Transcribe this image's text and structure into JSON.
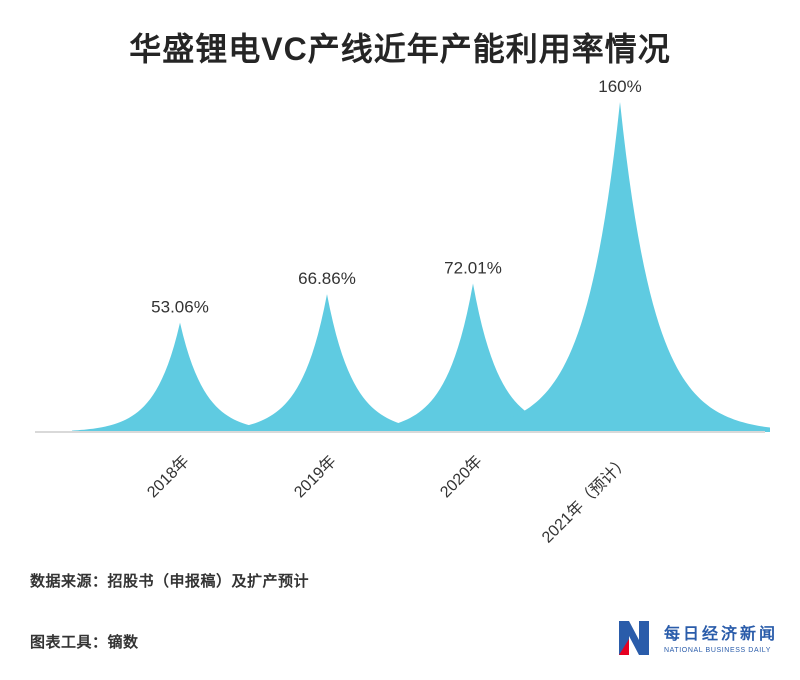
{
  "chart_data": {
    "type": "area",
    "title": "华盛锂电VC产线近年产能利用率情况",
    "categories": [
      "2018年",
      "2019年",
      "2020年",
      "2021年（预计）"
    ],
    "values": [
      53.06,
      66.86,
      72.01,
      160
    ],
    "value_labels": [
      "53.06%",
      "66.86%",
      "72.01%",
      "160%"
    ],
    "unit": "%",
    "xlabel": "",
    "ylabel": "",
    "ylim": [
      0,
      170
    ],
    "grid": false,
    "legend": null,
    "series_color": "#5FCBE1",
    "axis_color": "#D9D9D9",
    "label_color": "#333333"
  },
  "footer": {
    "source": "数据来源：招股书（申报稿）及扩产预计",
    "tool": "图表工具：镝数"
  },
  "logo": {
    "name_cn": "每日经济新闻",
    "name_en": "NATIONAL BUSINESS DAILY",
    "brand_blue": "#2A5CAA",
    "brand_red": "#E60021"
  }
}
